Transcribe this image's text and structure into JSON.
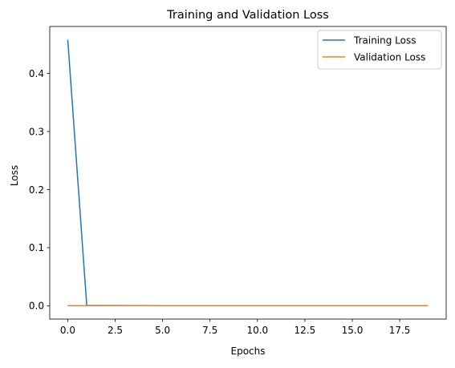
{
  "chart_data": {
    "type": "line",
    "title": "Training and Validation Loss",
    "xlabel": "Epochs",
    "ylabel": "Loss",
    "xlim": [
      -0.95,
      19.95
    ],
    "ylim": [
      -0.0229,
      0.4808
    ],
    "x_ticks": [
      0,
      2.5,
      5,
      7.5,
      10,
      12.5,
      15,
      17.5
    ],
    "x_tick_labels": [
      "0.0",
      "2.5",
      "5.0",
      "7.5",
      "10.0",
      "12.5",
      "15.0",
      "17.5"
    ],
    "y_ticks": [
      0,
      0.1,
      0.2,
      0.3,
      0.4
    ],
    "y_tick_labels": [
      "0.0",
      "0.1",
      "0.2",
      "0.3",
      "0.4"
    ],
    "grid": false,
    "legend_position": "top-right",
    "x": [
      0,
      1,
      2,
      3,
      4,
      5,
      6,
      7,
      8,
      9,
      10,
      11,
      12,
      13,
      14,
      15,
      16,
      17,
      18,
      19
    ],
    "series": [
      {
        "name": "Training Loss",
        "color": "#1f77b4",
        "values": [
          0.458,
          0.0006,
          0.0005,
          0.0004,
          0.0004,
          0.0003,
          0.0003,
          0.0003,
          0.0003,
          0.0002,
          0.0002,
          0.0002,
          0.0002,
          0.0002,
          0.0002,
          0.0002,
          0.0002,
          0.0002,
          0.0002,
          0.0002
        ]
      },
      {
        "name": "Validation Loss",
        "color": "#ff7f0e",
        "values": [
          0.0002,
          0.0002,
          0.0002,
          0.0002,
          0.0002,
          0.0002,
          0.0002,
          0.0002,
          0.0002,
          0.0002,
          0.0002,
          0.0002,
          0.0002,
          0.0002,
          0.0002,
          0.0002,
          0.0002,
          0.0002,
          0.0002,
          0.0002
        ]
      }
    ]
  }
}
